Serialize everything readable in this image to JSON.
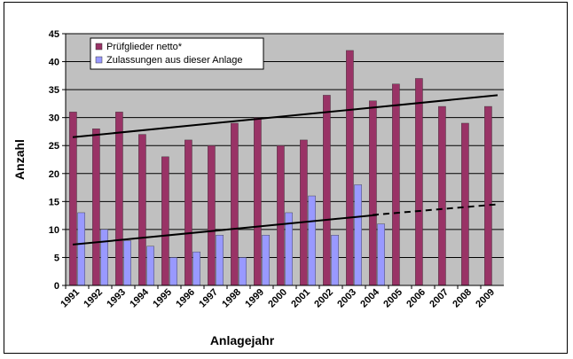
{
  "chart_data": {
    "type": "bar",
    "title": "",
    "xlabel": "Anlagejahr",
    "ylabel": "Anzahl",
    "ylim": [
      0,
      45
    ],
    "ytick_step": 5,
    "grid": true,
    "legend_placement": "top-left",
    "categories": [
      "1991",
      "1992",
      "1993",
      "1994",
      "1995",
      "1996",
      "1997",
      "1998",
      "1999",
      "2000",
      "2001",
      "2002",
      "2003",
      "2004",
      "2005",
      "2006",
      "2007",
      "2008",
      "2009"
    ],
    "series": [
      {
        "name": "Prüfglieder netto*",
        "color": "#993366",
        "values": [
          31,
          28,
          31,
          27,
          23,
          26,
          25,
          29,
          30,
          25,
          26,
          34,
          42,
          33,
          36,
          37,
          32,
          29,
          32
        ]
      },
      {
        "name": "Zulassungen aus dieser Anlage",
        "color": "#9999ff",
        "values": [
          13,
          10,
          8,
          7,
          5,
          6,
          9,
          5,
          9,
          13,
          16,
          9,
          18,
          11,
          null,
          null,
          null,
          null,
          null
        ]
      }
    ],
    "trendlines": [
      {
        "series": 0,
        "from": [
          "1991",
          26.5
        ],
        "to": [
          "2009",
          34
        ],
        "style": "solid"
      },
      {
        "series": 1,
        "from": [
          "1991",
          7.3
        ],
        "to": [
          "2004",
          12.6
        ],
        "style": "solid"
      },
      {
        "series": 1,
        "from": [
          "2004",
          12.6
        ],
        "to": [
          "2009",
          14.5
        ],
        "style": "dashed"
      }
    ],
    "colors": {
      "plot_background": "#c0c0c0",
      "grid": "#000000"
    }
  }
}
